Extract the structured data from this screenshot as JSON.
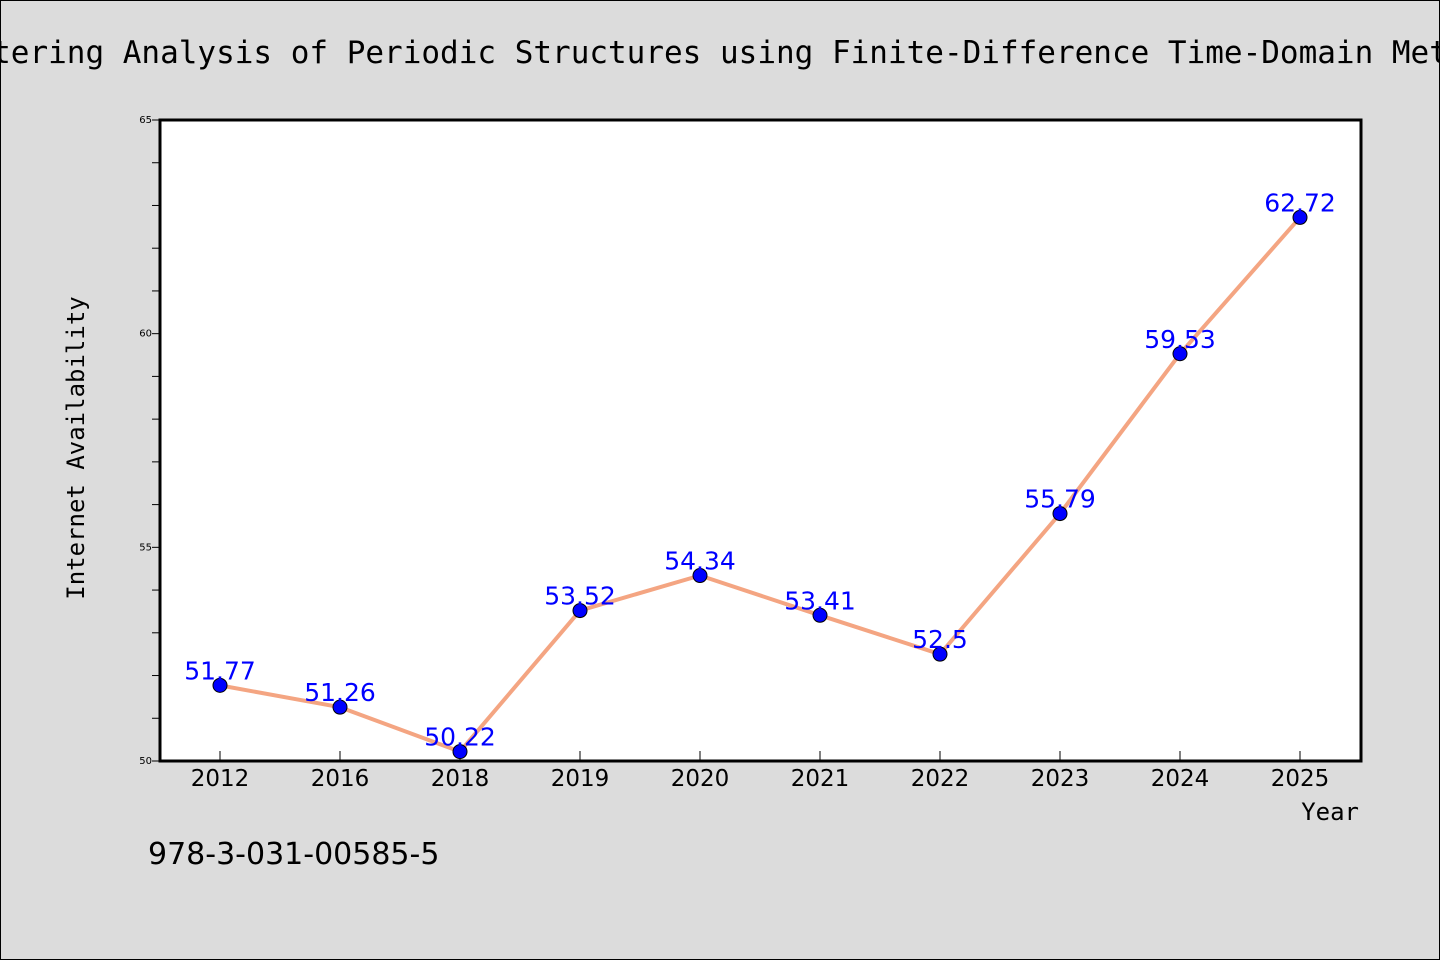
{
  "chart_data": {
    "type": "line",
    "title": "Scattering Analysis of Periodic Structures using Finite-Difference Time-Domain Methods",
    "xlabel": "Year",
    "ylabel": "Internet Availability",
    "categories": [
      "2012",
      "2016",
      "2018",
      "2019",
      "2020",
      "2021",
      "2022",
      "2023",
      "2024",
      "2025"
    ],
    "series": [
      {
        "values": [
          51.77,
          51.26,
          50.22,
          53.52,
          54.34,
          53.41,
          52.5,
          55.79,
          59.53,
          62.72
        ],
        "data_labels": [
          "51.77",
          "51.26",
          "50.22",
          "53.52",
          "54.34",
          "53.41",
          "52.5",
          "55.79",
          "59.53",
          "62.72"
        ]
      }
    ],
    "ylim": [
      50,
      65
    ],
    "yticks": [
      "50",
      "55",
      "60",
      "65"
    ],
    "grid": false,
    "legend": "none",
    "colors": {
      "line": "#f4a582",
      "marker": "#0000ff",
      "data_label": "#0000ff",
      "background": "#dcdcdc",
      "plot_area": "#ffffff"
    }
  },
  "annotation": "978-3-031-00585-5"
}
